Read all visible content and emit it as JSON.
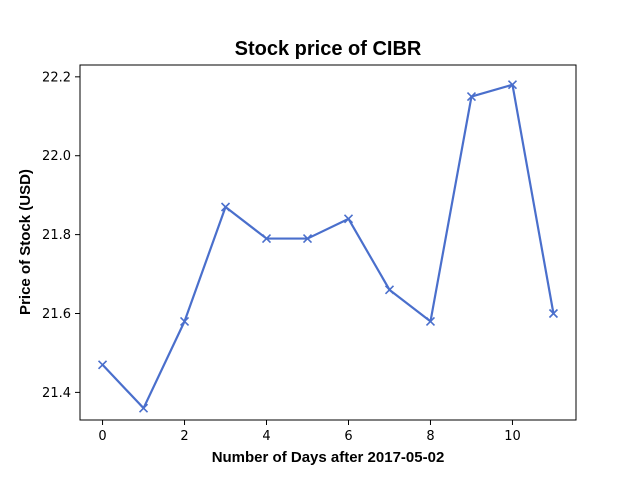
{
  "chart_data": {
    "type": "line",
    "title": "Stock price of CIBR",
    "xlabel": "Number of Days after 2017-05-02",
    "ylabel": "Price of Stock (USD)",
    "xlim": [
      -0.55,
      11.55
    ],
    "ylim": [
      21.33,
      22.23
    ],
    "x_ticks": [
      0,
      2,
      4,
      6,
      8,
      10
    ],
    "y_ticks": [
      21.4,
      21.6,
      21.8,
      22.0,
      22.2
    ],
    "y_tick_labels": [
      "21.4",
      "21.6",
      "21.8",
      "22.0",
      "22.2"
    ],
    "grid": false,
    "marker": "x",
    "line_color": "#4a6fcc",
    "series": [
      {
        "x": [
          0,
          1,
          2,
          3,
          4,
          5,
          6,
          7,
          8,
          9,
          10,
          11
        ],
        "values": [
          21.47,
          21.36,
          21.58,
          21.87,
          21.79,
          21.79,
          21.84,
          21.66,
          21.58,
          22.15,
          22.18,
          21.6
        ]
      }
    ]
  }
}
